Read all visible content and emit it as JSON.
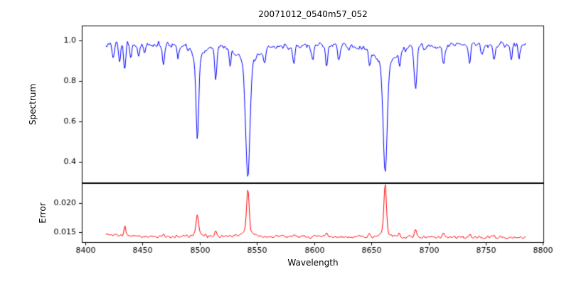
{
  "chart_data": {
    "type": "line",
    "title": "20071012_0540m57_052",
    "xlabel": "Wavelength",
    "xlim": [
      8397,
      8801
    ],
    "x_range_data": [
      8418,
      8785
    ],
    "x_ticks": [
      8400,
      8450,
      8500,
      8550,
      8600,
      8650,
      8700,
      8750,
      8800
    ],
    "grid": false,
    "legend": "none",
    "panels": [
      {
        "name": "spectrum",
        "ylabel": "Spectrum",
        "color": "#0000ff",
        "ylim": [
          0.295,
          1.075
        ],
        "y_ticks": [
          0.4,
          0.6,
          0.8,
          1.0
        ],
        "y_tick_labels": [
          "0.4",
          "0.6",
          "0.8",
          "1.0"
        ],
        "continuum": 0.98,
        "noise_amplitude": 0.014,
        "absorption_lines": [
          {
            "center": 8424.2,
            "depth": 0.07,
            "width": 0.8
          },
          {
            "center": 8430.0,
            "depth": 0.09,
            "width": 0.9
          },
          {
            "center": 8434.5,
            "depth": 0.13,
            "width": 0.9
          },
          {
            "center": 8440.0,
            "depth": 0.06,
            "width": 0.8
          },
          {
            "center": 8446.5,
            "depth": 0.07,
            "width": 0.8
          },
          {
            "center": 8452.0,
            "depth": 0.05,
            "width": 0.8
          },
          {
            "center": 8468.4,
            "depth": 0.11,
            "width": 1.0
          },
          {
            "center": 8481.0,
            "depth": 0.06,
            "width": 0.8
          },
          {
            "center": 8498.0,
            "depth": 0.475,
            "width": 1.1
          },
          {
            "center": 8514.1,
            "depth": 0.16,
            "width": 1.0
          },
          {
            "center": 8526.7,
            "depth": 0.08,
            "width": 0.8
          },
          {
            "center": 8542.1,
            "depth": 0.65,
            "width": 1.8
          },
          {
            "center": 8556.8,
            "depth": 0.07,
            "width": 0.8
          },
          {
            "center": 8582.3,
            "depth": 0.09,
            "width": 0.9
          },
          {
            "center": 8598.8,
            "depth": 0.08,
            "width": 0.9
          },
          {
            "center": 8611.0,
            "depth": 0.1,
            "width": 0.9
          },
          {
            "center": 8621.6,
            "depth": 0.08,
            "width": 0.9
          },
          {
            "center": 8648.5,
            "depth": 0.09,
            "width": 0.9
          },
          {
            "center": 8662.1,
            "depth": 0.64,
            "width": 1.6
          },
          {
            "center": 8674.7,
            "depth": 0.08,
            "width": 0.9
          },
          {
            "center": 8688.6,
            "depth": 0.21,
            "width": 1.2
          },
          {
            "center": 8713.2,
            "depth": 0.09,
            "width": 0.9
          },
          {
            "center": 8736.0,
            "depth": 0.09,
            "width": 0.9
          },
          {
            "center": 8747.0,
            "depth": 0.06,
            "width": 0.8
          },
          {
            "center": 8757.1,
            "depth": 0.08,
            "width": 0.9
          },
          {
            "center": 8772.3,
            "depth": 0.08,
            "width": 0.9
          },
          {
            "center": 8779.0,
            "depth": 0.06,
            "width": 0.8
          }
        ]
      },
      {
        "name": "error",
        "ylabel": "Error",
        "color": "#ff0000",
        "ylim": [
          0.0132,
          0.0234
        ],
        "y_ticks": [
          0.015,
          0.02
        ],
        "y_tick_labels": [
          "0.015",
          "0.020"
        ],
        "baseline": 0.0142,
        "noise_amplitude": 0.00022,
        "peaks": [
          {
            "center": 8434.5,
            "height": 0.0016,
            "width": 0.8
          },
          {
            "center": 8468.4,
            "height": 0.0006,
            "width": 0.8
          },
          {
            "center": 8498.0,
            "height": 0.0038,
            "width": 1.0
          },
          {
            "center": 8514.1,
            "height": 0.0009,
            "width": 0.8
          },
          {
            "center": 8542.1,
            "height": 0.008,
            "width": 1.1
          },
          {
            "center": 8582.3,
            "height": 0.0005,
            "width": 0.8
          },
          {
            "center": 8611.0,
            "height": 0.0006,
            "width": 0.8
          },
          {
            "center": 8648.5,
            "height": 0.0005,
            "width": 0.8
          },
          {
            "center": 8662.1,
            "height": 0.0091,
            "width": 1.0
          },
          {
            "center": 8674.7,
            "height": 0.0005,
            "width": 0.8
          },
          {
            "center": 8688.6,
            "height": 0.0013,
            "width": 0.9
          },
          {
            "center": 8713.2,
            "height": 0.0006,
            "width": 0.8
          },
          {
            "center": 8736.0,
            "height": 0.0005,
            "width": 0.8
          },
          {
            "center": 8757.1,
            "height": 0.0005,
            "width": 0.8
          }
        ]
      }
    ]
  }
}
